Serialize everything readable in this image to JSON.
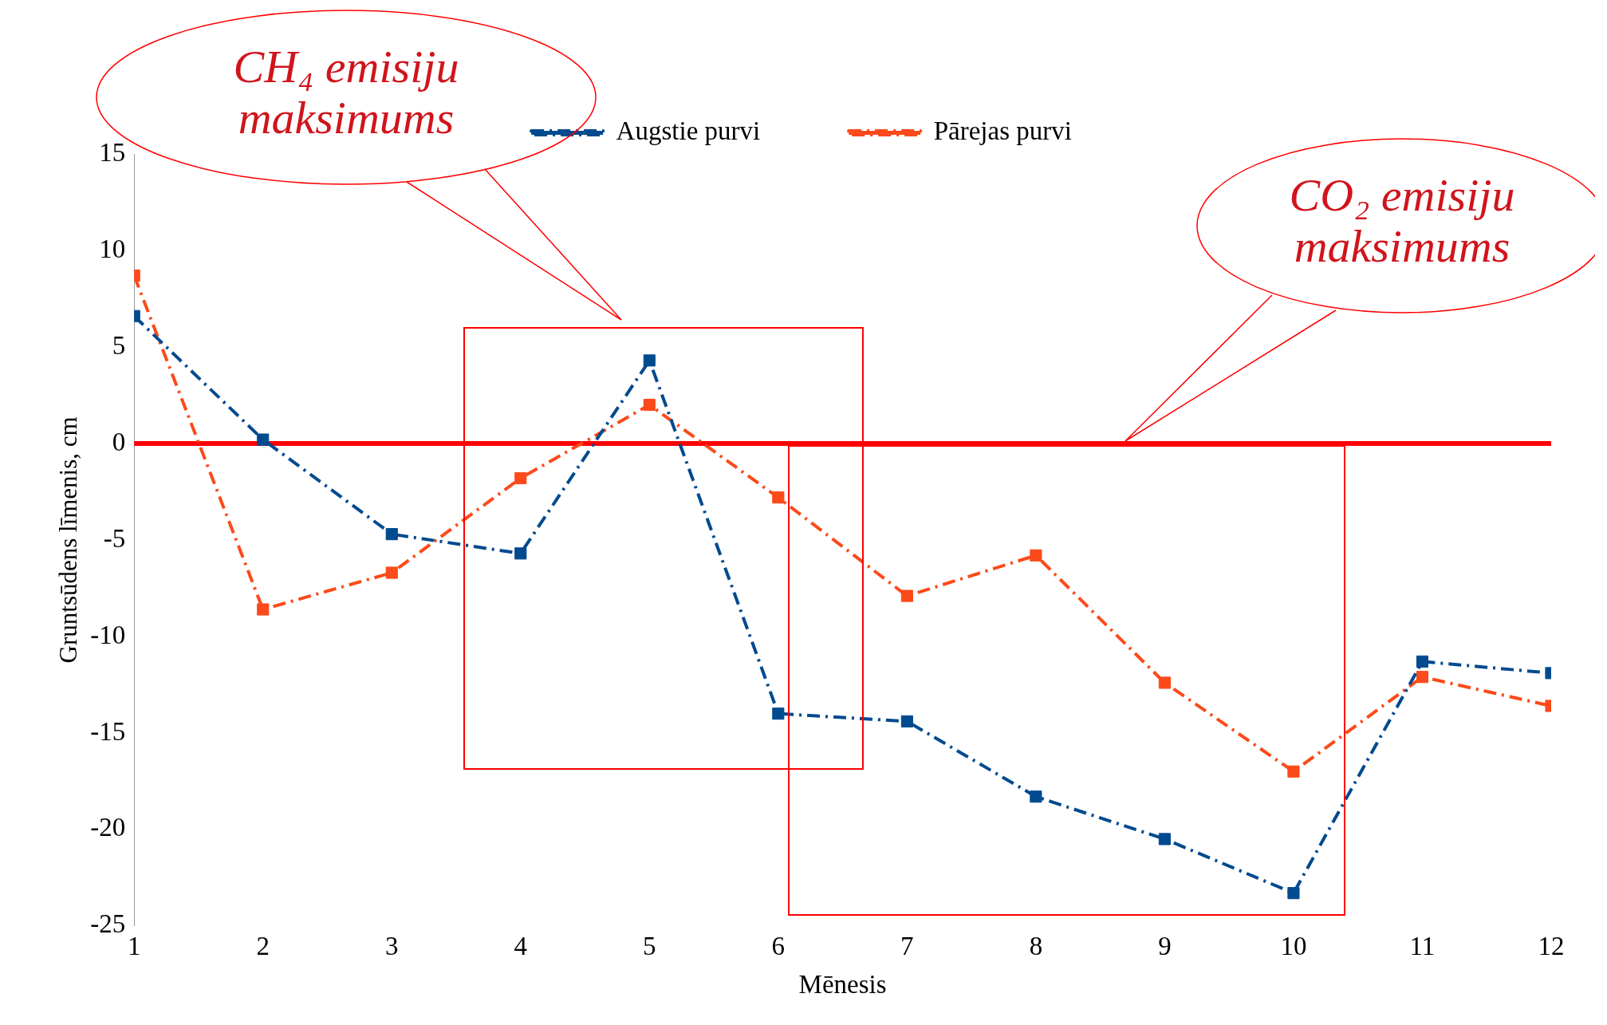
{
  "chart_data": {
    "type": "line",
    "xlabel": "Mēnesis",
    "ylabel": "Gruntsūdens līmenis, cm",
    "x": [
      1,
      2,
      3,
      4,
      5,
      6,
      7,
      8,
      9,
      10,
      11,
      12
    ],
    "series": [
      {
        "name": "Augstie purvi",
        "color": "#004a8f",
        "values": [
          6.6,
          0.2,
          -4.7,
          -5.7,
          4.3,
          -14.0,
          -14.4,
          -18.3,
          -20.5,
          -23.3,
          -11.3,
          -11.9
        ]
      },
      {
        "name": "Pārejas purvi",
        "color": "#fc4a1a",
        "values": [
          8.7,
          -8.6,
          -6.7,
          -1.8,
          2.0,
          -2.8,
          -7.9,
          -5.8,
          -12.4,
          -17.0,
          -12.1,
          -13.6
        ]
      }
    ],
    "xlim": [
      1,
      12
    ],
    "xticks": [
      1,
      2,
      3,
      4,
      5,
      6,
      7,
      8,
      9,
      10,
      11,
      12
    ],
    "ylim": [
      -25,
      15
    ],
    "yticks": [
      -25,
      -20,
      -15,
      -10,
      -5,
      0,
      5,
      10,
      15
    ],
    "grid": false,
    "legend": "top",
    "marker": "square",
    "line_style": "dashed",
    "ref_lines": [
      {
        "axis": "y",
        "value": 0,
        "color": "#ff0000"
      }
    ],
    "annotations": [
      "CH₄ emisiju maksimums",
      "CO₂ emisiju maksimums"
    ]
  }
}
